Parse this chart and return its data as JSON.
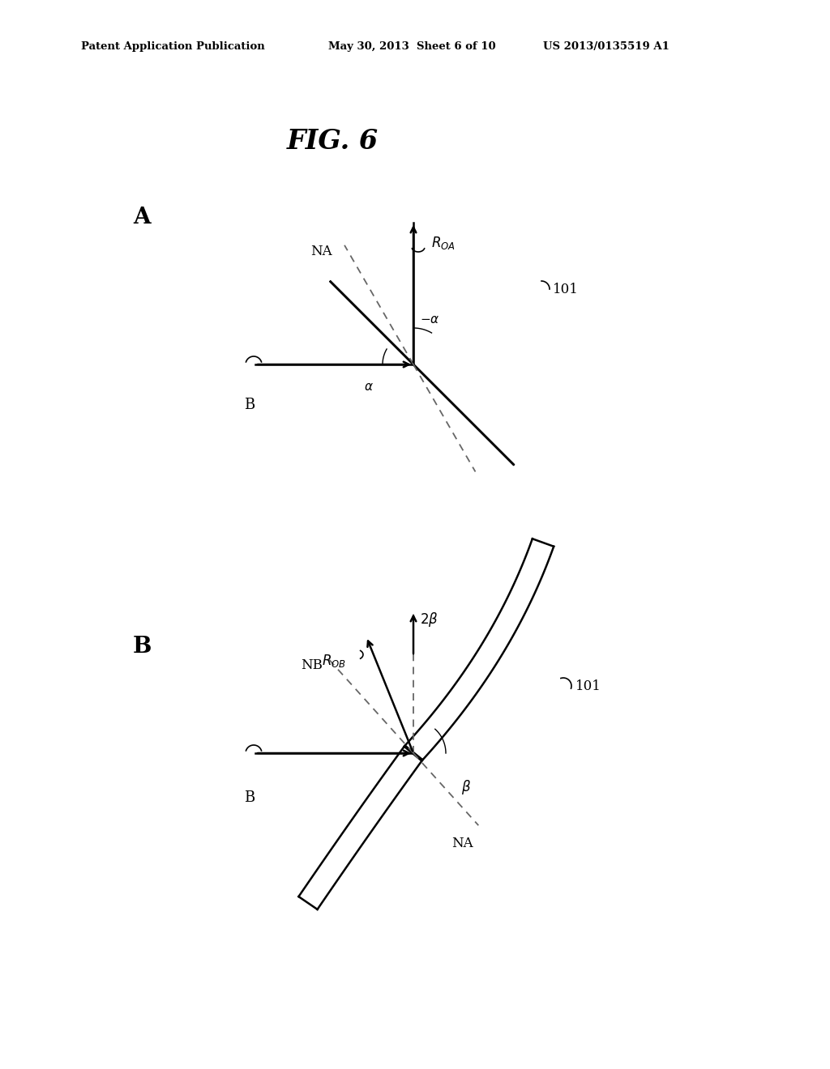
{
  "bg_color": "#ffffff",
  "line_color": "#000000",
  "dashed_color": "#666666",
  "header_left": "Patent Application Publication",
  "header_mid": "May 30, 2013  Sheet 6 of 10",
  "header_right": "US 2013/0135519 A1",
  "fig_title": "FIG. 6",
  "label_A": "A",
  "label_B_diag": "B",
  "label_B_beam_A": "B",
  "label_B_beam_B": "B",
  "label_101_A": "101",
  "label_101_B": "101",
  "label_ROA": "$R_{OA}$",
  "label_ROB": "$R_{OB}$",
  "label_NA_A": "NA",
  "label_NB": "NB",
  "label_NA_B": "NA",
  "label_alpha_neg": "$-\\alpha$",
  "label_alpha": "$\\alpha$",
  "label_2beta": "$2\\beta$",
  "label_beta": "$\\beta$"
}
